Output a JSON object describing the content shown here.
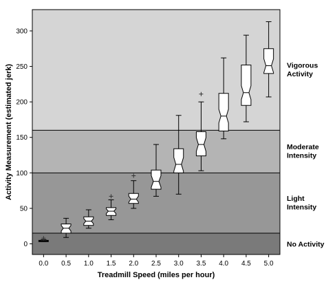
{
  "chart_data": {
    "type": "boxplot",
    "notched": true,
    "xlabel": "Treadmill Speed (miles per hour)",
    "ylabel": "Activity Measurement (estimated jerk)",
    "x_tick_labels": [
      "0.0",
      "0.5",
      "1.0",
      "1.5",
      "2.0",
      "2.5",
      "3.0",
      "3.5",
      "4.0",
      "4.5",
      "5.0"
    ],
    "y_ticks": [
      0,
      50,
      100,
      150,
      200,
      250,
      300
    ],
    "xlim": [
      -0.25,
      5.25
    ],
    "ylim": [
      -15,
      330
    ],
    "zones": [
      {
        "label": "No Activity",
        "from": -15,
        "to": 15,
        "color": "#7a7a7a"
      },
      {
        "label": "Light Intensity",
        "from": 15,
        "to": 100,
        "color": "#979797"
      },
      {
        "label": "Moderate Intensity",
        "from": 100,
        "to": 160,
        "color": "#b4b4b4"
      },
      {
        "label": "Vigorous Activity",
        "from": 160,
        "to": 330,
        "color": "#d5d5d5"
      }
    ],
    "boxes": [
      {
        "x": 0.0,
        "min": 3,
        "q1": 3,
        "median": 4,
        "q3": 5,
        "max": 6,
        "outliers": [
          8
        ]
      },
      {
        "x": 0.5,
        "min": 9,
        "q1": 15,
        "median": 22,
        "q3": 28,
        "max": 36,
        "outliers": []
      },
      {
        "x": 1.0,
        "min": 22,
        "q1": 26,
        "median": 32,
        "q3": 38,
        "max": 48,
        "outliers": []
      },
      {
        "x": 1.5,
        "min": 34,
        "q1": 40,
        "median": 46,
        "q3": 51,
        "max": 62,
        "outliers": [
          67
        ]
      },
      {
        "x": 2.0,
        "min": 50,
        "q1": 57,
        "median": 63,
        "q3": 71,
        "max": 89,
        "outliers": [
          96
        ]
      },
      {
        "x": 2.5,
        "min": 67,
        "q1": 77,
        "median": 88,
        "q3": 104,
        "max": 140,
        "outliers": []
      },
      {
        "x": 3.0,
        "min": 70,
        "q1": 100,
        "median": 112,
        "q3": 134,
        "max": 181,
        "outliers": []
      },
      {
        "x": 3.5,
        "min": 103,
        "q1": 124,
        "median": 140,
        "q3": 158,
        "max": 200,
        "outliers": [
          211
        ]
      },
      {
        "x": 4.0,
        "min": 148,
        "q1": 159,
        "median": 180,
        "q3": 212,
        "max": 262,
        "outliers": []
      },
      {
        "x": 4.5,
        "min": 172,
        "q1": 195,
        "median": 213,
        "q3": 252,
        "max": 294,
        "outliers": []
      },
      {
        "x": 5.0,
        "min": 207,
        "q1": 240,
        "median": 251,
        "q3": 275,
        "max": 313,
        "outliers": []
      }
    ]
  }
}
